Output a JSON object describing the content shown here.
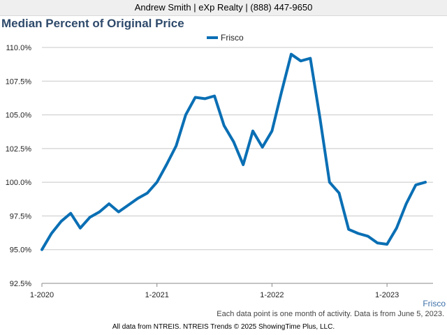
{
  "header": {
    "text": "Andrew Smith | eXp Realty | (888) 447-9650"
  },
  "chart_data": {
    "type": "line",
    "title": "Median Percent of Original Price",
    "xlabel": "",
    "ylabel": "",
    "ylim": [
      92.5,
      110.0
    ],
    "yticks": [
      "110.0%",
      "107.5%",
      "105.0%",
      "102.5%",
      "100.0%",
      "97.5%",
      "95.0%",
      "92.5%"
    ],
    "ytick_values": [
      110.0,
      107.5,
      105.0,
      102.5,
      100.0,
      97.5,
      95.0,
      92.5
    ],
    "xticks": [
      "1-2020",
      "1-2021",
      "1-2022",
      "1-2023"
    ],
    "xtick_months": [
      0,
      12,
      24,
      36
    ],
    "xlim_months": [
      0,
      40.8
    ],
    "grid": true,
    "legend_position": "top-center",
    "color": "#0a6fb4",
    "series": [
      {
        "name": "Frisco",
        "start": "1-2020",
        "values": [
          95.0,
          96.2,
          97.1,
          97.7,
          96.6,
          97.4,
          97.8,
          98.4,
          97.8,
          98.3,
          98.8,
          99.2,
          100.0,
          101.3,
          102.7,
          105.0,
          106.3,
          106.2,
          106.4,
          104.2,
          103.0,
          101.3,
          103.8,
          102.6,
          103.8,
          106.7,
          109.5,
          109.0,
          109.2,
          104.8,
          100.0,
          99.2,
          96.5,
          96.2,
          96.0,
          95.5,
          95.4,
          96.6,
          98.4,
          99.8,
          100.0
        ]
      }
    ],
    "note": "Each data point is one month of activity. Data is from June 5, 2023."
  },
  "footer": {
    "source": "All data from NTREIS. NTREIS Trends © 2025 ShowingTime Plus, LLC."
  }
}
